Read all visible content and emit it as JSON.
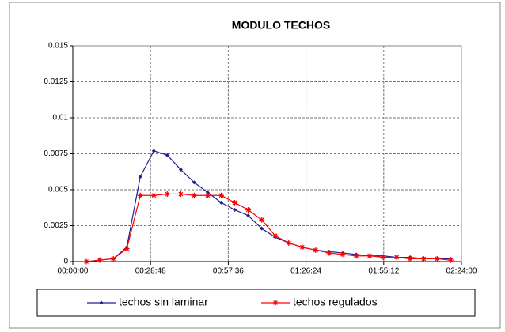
{
  "chart_data": {
    "type": "line",
    "title": "MODULO TECHOS",
    "x": [
      5,
      10,
      15,
      20,
      25,
      30,
      35,
      40,
      45,
      50,
      55,
      60,
      65,
      70,
      75,
      80,
      85,
      90,
      95,
      100,
      105,
      110,
      115,
      120,
      125,
      130,
      135,
      140
    ],
    "series": [
      {
        "name": "techos sin laminar",
        "color": "#1f1f8f",
        "marker": "diamond",
        "values": [
          0,
          0.0001,
          0.0002,
          0.001,
          0.0059,
          0.0077,
          0.0074,
          0.0064,
          0.0055,
          0.0048,
          0.0041,
          0.0036,
          0.0032,
          0.0023,
          0.0017,
          0.0013,
          0.001,
          0.0008,
          0.0007,
          0.0006,
          0.0005,
          0.0004,
          0.0004,
          0.0003,
          0.0003,
          0.0002,
          0.0002,
          0.0002
        ]
      },
      {
        "name": "techos regulados",
        "color": "#ff0000",
        "marker": "asterisk",
        "values": [
          0,
          0.0001,
          0.0002,
          0.0009,
          0.0046,
          0.0046,
          0.0047,
          0.0047,
          0.0046,
          0.0046,
          0.0046,
          0.0041,
          0.0036,
          0.0029,
          0.0018,
          0.0013,
          0.001,
          0.0008,
          0.0006,
          0.0005,
          0.0004,
          0.0004,
          0.0003,
          0.0003,
          0.0002,
          0.0002,
          0.0002,
          0.0001
        ]
      }
    ],
    "xlim": [
      0,
      144
    ],
    "xticks": [
      {
        "value": 0,
        "label": "00:00:00"
      },
      {
        "value": 28.8,
        "label": "00:28:48"
      },
      {
        "value": 57.6,
        "label": "00:57:36"
      },
      {
        "value": 86.4,
        "label": "01:26:24"
      },
      {
        "value": 115.2,
        "label": "01:55:12"
      },
      {
        "value": 144,
        "label": "02:24:00"
      }
    ],
    "ylim": [
      0,
      0.015
    ],
    "yticks": [
      0,
      0.0025,
      0.005,
      0.0075,
      0.01,
      0.0125,
      0.015
    ],
    "grid": true,
    "legend": "bottom"
  }
}
